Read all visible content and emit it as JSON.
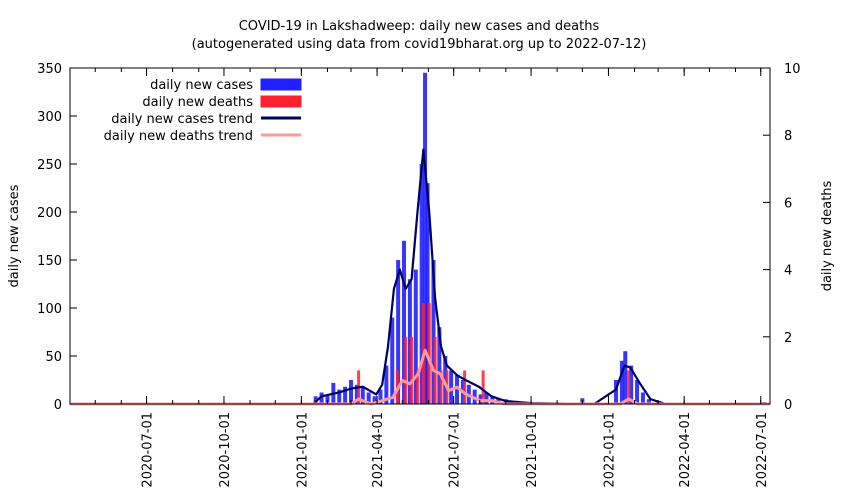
{
  "chart_data": {
    "type": "bar",
    "title": "COVID-19 in Lakshadweep: daily new cases and deaths",
    "subtitle": "(autogenerated using data from covid19bharat.org up to 2022-07-12)",
    "ylabel": "daily new cases",
    "y2label": "daily new deaths",
    "ylim": [
      0,
      350
    ],
    "y2lim": [
      0,
      10
    ],
    "xlim": [
      "2020-04-01",
      "2022-07-12"
    ],
    "y_ticks": [
      "0",
      "50",
      "100",
      "150",
      "200",
      "250",
      "300",
      "350"
    ],
    "y2_ticks": [
      "0",
      "2",
      "4",
      "6",
      "8",
      "10"
    ],
    "x_ticks": [
      "2020-07-01",
      "2020-10-01",
      "2021-01-01",
      "2021-04-01",
      "2021-07-01",
      "2021-10-01",
      "2022-01-01",
      "2022-04-01",
      "2022-07-01"
    ],
    "legend_position": "top-left",
    "colors": {
      "cases": "#2020ff",
      "deaths": "#ff2030",
      "cases_trend": "#000060",
      "deaths_trend": "#ff9a9a"
    },
    "series": [
      {
        "name": "daily new cases",
        "axis": "left",
        "style": "bars",
        "points": [
          [
            "2021-01-18",
            8
          ],
          [
            "2021-01-25",
            12
          ],
          [
            "2021-02-01",
            10
          ],
          [
            "2021-02-08",
            22
          ],
          [
            "2021-02-15",
            15
          ],
          [
            "2021-02-22",
            18
          ],
          [
            "2021-03-01",
            25
          ],
          [
            "2021-03-08",
            20
          ],
          [
            "2021-03-15",
            18
          ],
          [
            "2021-03-22",
            12
          ],
          [
            "2021-03-29",
            8
          ],
          [
            "2021-04-05",
            15
          ],
          [
            "2021-04-12",
            40
          ],
          [
            "2021-04-19",
            90
          ],
          [
            "2021-04-26",
            150
          ],
          [
            "2021-05-03",
            170
          ],
          [
            "2021-05-10",
            130
          ],
          [
            "2021-05-17",
            140
          ],
          [
            "2021-05-24",
            250
          ],
          [
            "2021-05-28",
            345
          ],
          [
            "2021-05-31",
            230
          ],
          [
            "2021-06-07",
            150
          ],
          [
            "2021-06-14",
            80
          ],
          [
            "2021-06-21",
            50
          ],
          [
            "2021-06-28",
            35
          ],
          [
            "2021-07-05",
            30
          ],
          [
            "2021-07-12",
            25
          ],
          [
            "2021-07-19",
            20
          ],
          [
            "2021-07-26",
            15
          ],
          [
            "2021-08-02",
            10
          ],
          [
            "2021-08-09",
            12
          ],
          [
            "2021-08-16",
            8
          ],
          [
            "2021-08-23",
            6
          ],
          [
            "2021-09-01",
            5
          ],
          [
            "2021-09-15",
            3
          ],
          [
            "2021-10-01",
            2
          ],
          [
            "2021-12-01",
            6
          ],
          [
            "2022-01-10",
            25
          ],
          [
            "2022-01-17",
            45
          ],
          [
            "2022-01-21",
            55
          ],
          [
            "2022-01-28",
            40
          ],
          [
            "2022-02-04",
            25
          ],
          [
            "2022-02-11",
            12
          ],
          [
            "2022-02-18",
            5
          ],
          [
            "2022-03-01",
            2
          ],
          [
            "2022-07-05",
            2
          ]
        ]
      },
      {
        "name": "daily new deaths",
        "axis": "right",
        "style": "bars",
        "points": [
          [
            "2021-03-10",
            1
          ],
          [
            "2021-04-25",
            1
          ],
          [
            "2021-05-05",
            2
          ],
          [
            "2021-05-12",
            2
          ],
          [
            "2021-05-19",
            1
          ],
          [
            "2021-05-26",
            3
          ],
          [
            "2021-06-02",
            3
          ],
          [
            "2021-06-09",
            2
          ],
          [
            "2021-06-16",
            1
          ],
          [
            "2021-06-23",
            1
          ],
          [
            "2021-07-14",
            1
          ],
          [
            "2021-08-05",
            1
          ],
          [
            "2022-01-25",
            1
          ]
        ]
      },
      {
        "name": "daily new cases trend",
        "axis": "left",
        "style": "line",
        "points": [
          [
            "2020-04-01",
            0
          ],
          [
            "2021-01-15",
            0
          ],
          [
            "2021-01-25",
            8
          ],
          [
            "2021-02-15",
            12
          ],
          [
            "2021-03-01",
            16
          ],
          [
            "2021-03-15",
            18
          ],
          [
            "2021-03-31",
            10
          ],
          [
            "2021-04-07",
            20
          ],
          [
            "2021-04-14",
            60
          ],
          [
            "2021-04-21",
            120
          ],
          [
            "2021-04-28",
            140
          ],
          [
            "2021-05-05",
            120
          ],
          [
            "2021-05-12",
            130
          ],
          [
            "2021-05-19",
            200
          ],
          [
            "2021-05-26",
            265
          ],
          [
            "2021-06-02",
            200
          ],
          [
            "2021-06-09",
            110
          ],
          [
            "2021-06-16",
            60
          ],
          [
            "2021-06-23",
            40
          ],
          [
            "2021-07-05",
            30
          ],
          [
            "2021-07-15",
            25
          ],
          [
            "2021-07-31",
            18
          ],
          [
            "2021-08-15",
            8
          ],
          [
            "2021-09-01",
            3
          ],
          [
            "2021-10-01",
            1
          ],
          [
            "2021-12-15",
            0
          ],
          [
            "2022-01-10",
            15
          ],
          [
            "2022-01-20",
            40
          ],
          [
            "2022-01-27",
            38
          ],
          [
            "2022-02-07",
            22
          ],
          [
            "2022-02-20",
            5
          ],
          [
            "2022-03-10",
            0
          ],
          [
            "2022-07-12",
            0
          ]
        ]
      },
      {
        "name": "daily new deaths trend",
        "axis": "right",
        "style": "line",
        "points": [
          [
            "2020-04-01",
            0
          ],
          [
            "2021-03-01",
            0
          ],
          [
            "2021-03-10",
            0.15
          ],
          [
            "2021-03-25",
            0
          ],
          [
            "2021-04-20",
            0.2
          ],
          [
            "2021-05-01",
            0.7
          ],
          [
            "2021-05-10",
            0.6
          ],
          [
            "2021-05-20",
            0.9
          ],
          [
            "2021-05-28",
            1.6
          ],
          [
            "2021-06-07",
            1.0
          ],
          [
            "2021-06-15",
            0.9
          ],
          [
            "2021-06-25",
            0.4
          ],
          [
            "2021-07-05",
            0.5
          ],
          [
            "2021-07-15",
            0.3
          ],
          [
            "2021-08-01",
            0.1
          ],
          [
            "2021-08-15",
            0.1
          ],
          [
            "2021-08-31",
            0
          ],
          [
            "2022-01-15",
            0
          ],
          [
            "2022-01-25",
            0.15
          ],
          [
            "2022-02-05",
            0
          ],
          [
            "2022-07-12",
            0
          ]
        ]
      }
    ]
  }
}
